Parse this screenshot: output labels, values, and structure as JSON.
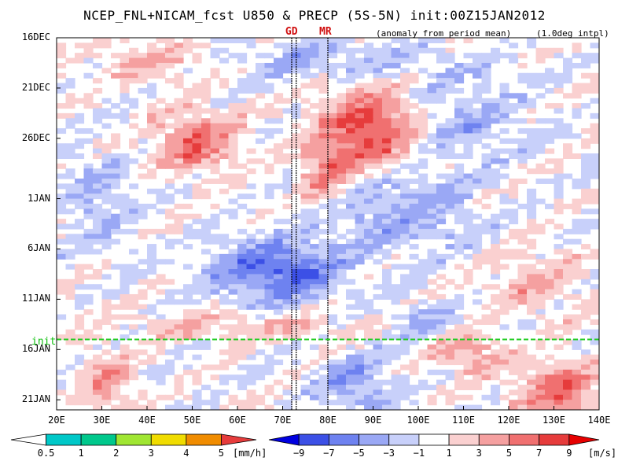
{
  "chart_data": {
    "type": "heatmap",
    "title": "NCEP_FNL+NICAM_fcst U850 & PRECP (5S-5N) init:00Z15JAN2012",
    "subtitle": "(anomaly from period mean)",
    "interp_note": "(1.0deg intpl)",
    "x_ticks": [
      "20E",
      "30E",
      "40E",
      "50E",
      "60E",
      "70E",
      "80E",
      "90E",
      "100E",
      "110E",
      "120E",
      "130E",
      "140E"
    ],
    "x_range": [
      20,
      140
    ],
    "y_ticks": [
      "16DEC",
      "21DEC",
      "26DEC",
      "1JAN",
      "6JAN",
      "11JAN",
      "16JAN",
      "21JAN"
    ],
    "y_tick_days": [
      0,
      5,
      10,
      16,
      21,
      26,
      31,
      36
    ],
    "y_range_days": [
      0,
      37
    ],
    "init_label": "init",
    "init_day": 30,
    "longitude_markers": [
      {
        "label": "GD",
        "lon": 72.5
      },
      {
        "label": "MR",
        "lon": 80
      }
    ],
    "marker_lines_lon": [
      72,
      73,
      80
    ],
    "precip_colorbar": {
      "labels": [
        "0.5",
        "1",
        "2",
        "3",
        "4",
        "5"
      ],
      "unit": "[mm/h]",
      "colors": [
        "#ffffff",
        "#00c8c8",
        "#00c88c",
        "#a0e632",
        "#f0dc00",
        "#f08c00",
        "#e63c3c"
      ]
    },
    "u850_colorbar": {
      "labels": [
        "−9",
        "−7",
        "−5",
        "−3",
        "−1",
        "1",
        "3",
        "5",
        "7",
        "9"
      ],
      "unit": "[m/s]",
      "colors": [
        "#0000e0",
        "#3c50e6",
        "#6e82f0",
        "#9aa8f5",
        "#c8d0fa",
        "#ffffff",
        "#fad0d0",
        "#f5a0a0",
        "#f07070",
        "#e63c3c",
        "#e60000"
      ]
    },
    "anomaly_features": [
      {
        "sign": "positive",
        "lon": 50,
        "day": 10,
        "sx": 9,
        "sy": 3,
        "amp": 6
      },
      {
        "sign": "positive",
        "lon": 88,
        "day": 9,
        "sx": 10,
        "sy": 4,
        "amp": 8
      },
      {
        "sign": "positive",
        "lon": 78,
        "day": 13,
        "sx": 5,
        "sy": 3,
        "amp": 5
      },
      {
        "sign": "negative",
        "lon": 68,
        "day": 23,
        "sx": 14,
        "sy": 3.2,
        "amp": -7
      },
      {
        "sign": "negative",
        "lon": 95,
        "day": 17,
        "sx": 16,
        "sy": 4,
        "amp": -4
      },
      {
        "sign": "negative",
        "lon": 110,
        "day": 8,
        "sx": 12,
        "sy": 4,
        "amp": -3
      },
      {
        "sign": "negative",
        "lon": 28,
        "day": 16,
        "sx": 8,
        "sy": 5,
        "amp": -3
      },
      {
        "sign": "negative",
        "lon": 80,
        "day": 2,
        "sx": 25,
        "sy": 2,
        "amp": -3
      },
      {
        "sign": "positive",
        "lon": 40,
        "day": 2,
        "sx": 14,
        "sy": 2,
        "amp": 3
      },
      {
        "sign": "positive",
        "lon": 125,
        "day": 24,
        "sx": 10,
        "sy": 3,
        "amp": 3
      },
      {
        "sign": "positive",
        "lon": 110,
        "day": 31,
        "sx": 8,
        "sy": 2,
        "amp": 4
      },
      {
        "sign": "positive",
        "lon": 130,
        "day": 35,
        "sx": 9,
        "sy": 3,
        "amp": 6
      },
      {
        "sign": "negative",
        "lon": 85,
        "day": 34,
        "sx": 9,
        "sy": 3,
        "amp": -4
      },
      {
        "sign": "positive",
        "lon": 30,
        "day": 34,
        "sx": 6,
        "sy": 3,
        "amp": 4
      },
      {
        "sign": "positive",
        "lon": 60,
        "day": 28.5,
        "sx": 25,
        "sy": 1.5,
        "amp": 3
      },
      {
        "sign": "negative",
        "lon": 100,
        "day": 28,
        "sx": 8,
        "sy": 2,
        "amp": -3
      }
    ]
  }
}
